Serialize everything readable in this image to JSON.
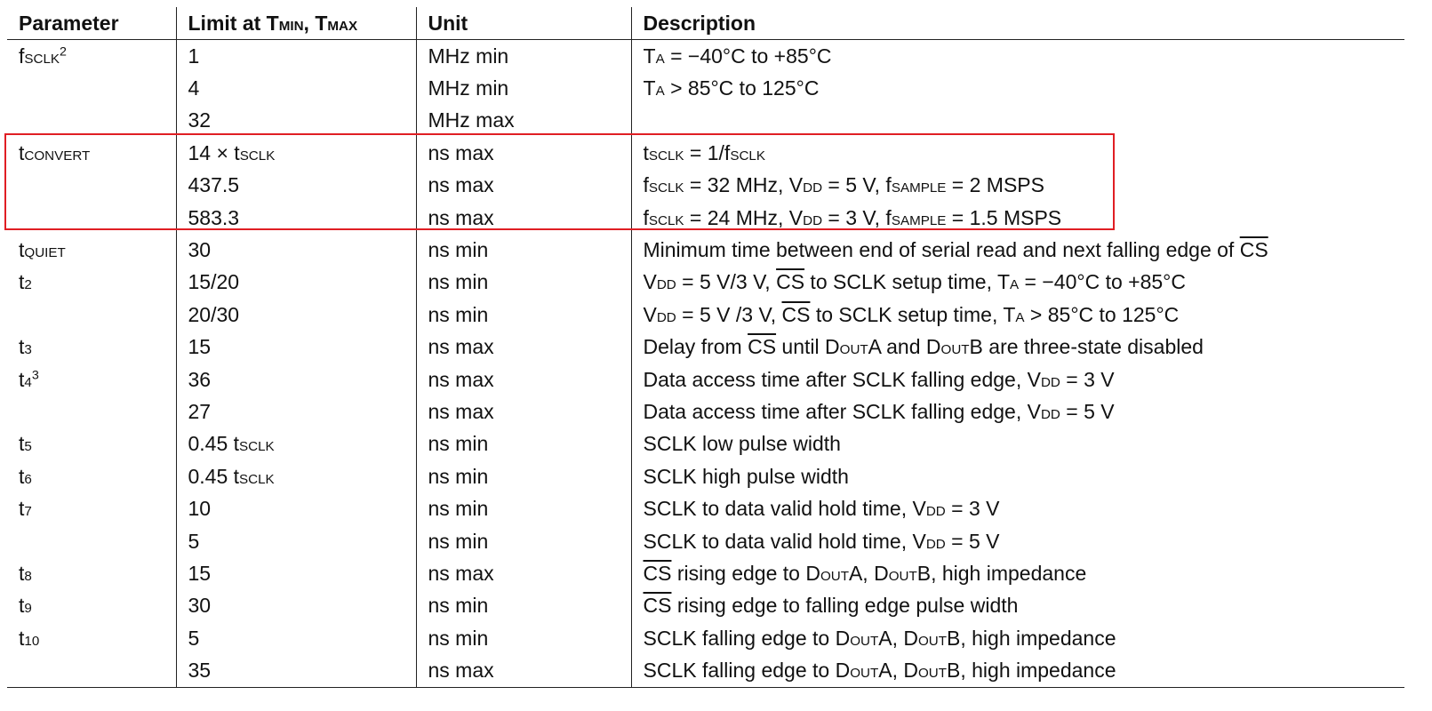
{
  "header": {
    "parameter": "Parameter",
    "limit": {
      "prefix": "Limit at T",
      "sub1": "MIN",
      "mid": ", T",
      "sub2": "MAX"
    },
    "unit": "Unit",
    "description": "Description"
  },
  "rows": [
    {
      "param": [
        "f",
        {
          "sub": "SCLK"
        },
        {
          "sup": "2"
        }
      ],
      "limit": [
        "1"
      ],
      "unit": "MHz min",
      "desc": [
        "T",
        {
          "sub": "A"
        },
        " = −40°C to +85°C"
      ]
    },
    {
      "param": [],
      "limit": [
        "4"
      ],
      "unit": "MHz min",
      "desc": [
        "T",
        {
          "sub": "A"
        },
        " > 85°C to 125°C"
      ]
    },
    {
      "param": [],
      "limit": [
        "32"
      ],
      "unit": "MHz max",
      "desc": []
    },
    {
      "param": [
        "t",
        {
          "sub": "CONVERT"
        }
      ],
      "limit": [
        "14 × t",
        {
          "sub": "SCLK"
        }
      ],
      "unit": "ns max",
      "desc": [
        "t",
        {
          "sub": "SCLK"
        },
        " = 1/f",
        {
          "sub": "SCLK"
        }
      ]
    },
    {
      "param": [],
      "limit": [
        "437.5"
      ],
      "unit": "ns max",
      "desc": [
        "f",
        {
          "sub": "SCLK"
        },
        " = 32 MHz, V",
        {
          "sub": "DD"
        },
        " = 5 V, f",
        {
          "sub": "SAMPLE"
        },
        " = 2 MSPS"
      ]
    },
    {
      "param": [],
      "limit": [
        "583.3"
      ],
      "unit": "ns max",
      "desc": [
        "f",
        {
          "sub": "SCLK"
        },
        " = 24 MHz, V",
        {
          "sub": "DD"
        },
        " = 3 V, f",
        {
          "sub": "SAMPLE"
        },
        " = 1.5 MSPS"
      ]
    },
    {
      "param": [
        "t",
        {
          "sub": "QUIET"
        }
      ],
      "limit": [
        "30"
      ],
      "unit": "ns min",
      "desc": [
        "Minimum time between end of serial read and next falling edge of ",
        {
          "over": "CS"
        }
      ]
    },
    {
      "param": [
        "t",
        {
          "sub": "2"
        }
      ],
      "limit": [
        "15/20"
      ],
      "unit": "ns min",
      "desc": [
        "V",
        {
          "sub": "DD"
        },
        " = 5 V/3 V, ",
        {
          "over": "CS"
        },
        " to SCLK setup time, T",
        {
          "sub": "A"
        },
        " = −40°C to +85°C"
      ]
    },
    {
      "param": [],
      "limit": [
        "20/30"
      ],
      "unit": "ns min",
      "desc": [
        "V",
        {
          "sub": "DD"
        },
        " = 5 V /3 V, ",
        {
          "over": "CS"
        },
        " to SCLK setup time, T",
        {
          "sub": "A"
        },
        " > 85°C to 125°C"
      ]
    },
    {
      "param": [
        "t",
        {
          "sub": "3"
        }
      ],
      "limit": [
        "15"
      ],
      "unit": "ns max",
      "desc": [
        "Delay from ",
        {
          "over": "CS"
        },
        " until D",
        {
          "sub": "OUT"
        },
        "A and D",
        {
          "sub": "OUT"
        },
        "B are three-state disabled"
      ]
    },
    {
      "param": [
        "t",
        {
          "sub": "4"
        },
        {
          "sup": "3"
        }
      ],
      "limit": [
        "36"
      ],
      "unit": "ns max",
      "desc": [
        "Data access time after SCLK falling edge, V",
        {
          "sub": "DD"
        },
        " = 3 V"
      ]
    },
    {
      "param": [],
      "limit": [
        "27"
      ],
      "unit": "ns max",
      "desc": [
        "Data access time after SCLK falling edge, V",
        {
          "sub": "DD"
        },
        " = 5 V"
      ]
    },
    {
      "param": [
        "t",
        {
          "sub": "5"
        }
      ],
      "limit": [
        "0.45 t",
        {
          "sub": "SCLK"
        }
      ],
      "unit": "ns min",
      "desc": [
        "SCLK low pulse width"
      ]
    },
    {
      "param": [
        "t",
        {
          "sub": "6"
        }
      ],
      "limit": [
        "0.45 t",
        {
          "sub": "SCLK"
        }
      ],
      "unit": "ns min",
      "desc": [
        "SCLK high pulse width"
      ]
    },
    {
      "param": [
        "t",
        {
          "sub": "7"
        }
      ],
      "limit": [
        "10"
      ],
      "unit": "ns min",
      "desc": [
        "SCLK to data valid hold time, V",
        {
          "sub": "DD"
        },
        " = 3 V"
      ]
    },
    {
      "param": [],
      "limit": [
        "5"
      ],
      "unit": "ns min",
      "desc": [
        "SCLK to data valid hold time, V",
        {
          "sub": "DD"
        },
        " = 5 V"
      ]
    },
    {
      "param": [
        "t",
        {
          "sub": "8"
        }
      ],
      "limit": [
        "15"
      ],
      "unit": "ns max",
      "desc": [
        {
          "over": "CS"
        },
        " rising edge to D",
        {
          "sub": "OUT"
        },
        "A, D",
        {
          "sub": "OUT"
        },
        "B, high impedance"
      ]
    },
    {
      "param": [
        "t",
        {
          "sub": "9"
        }
      ],
      "limit": [
        "30"
      ],
      "unit": "ns min",
      "desc": [
        {
          "over": "CS"
        },
        " rising edge to falling edge pulse width"
      ]
    },
    {
      "param": [
        "t",
        {
          "sub": "10"
        }
      ],
      "limit": [
        "5"
      ],
      "unit": "ns min",
      "desc": [
        "SCLK falling edge to D",
        {
          "sub": "OUT"
        },
        "A, D",
        {
          "sub": "OUT"
        },
        "B, high impedance"
      ]
    },
    {
      "param": [],
      "limit": [
        "35"
      ],
      "unit": "ns max",
      "desc": [
        "SCLK falling edge to D",
        {
          "sub": "OUT"
        },
        "A, D",
        {
          "sub": "OUT"
        },
        "B, high impedance"
      ]
    }
  ],
  "highlight": {
    "color": "#e01e24"
  }
}
